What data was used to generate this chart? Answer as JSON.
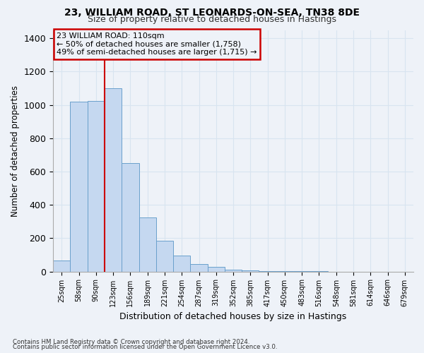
{
  "title1": "23, WILLIAM ROAD, ST LEONARDS-ON-SEA, TN38 8DE",
  "title2": "Size of property relative to detached houses in Hastings",
  "xlabel": "Distribution of detached houses by size in Hastings",
  "ylabel": "Number of detached properties",
  "footnote1": "Contains HM Land Registry data © Crown copyright and database right 2024.",
  "footnote2": "Contains public sector information licensed under the Open Government Licence v3.0.",
  "annotation_line1": "23 WILLIAM ROAD: 110sqm",
  "annotation_line2": "← 50% of detached houses are smaller (1,758)",
  "annotation_line3": "49% of semi-detached houses are larger (1,715) →",
  "bar_labels": [
    "25sqm",
    "58sqm",
    "90sqm",
    "123sqm",
    "156sqm",
    "189sqm",
    "221sqm",
    "254sqm",
    "287sqm",
    "319sqm",
    "352sqm",
    "385sqm",
    "417sqm",
    "450sqm",
    "483sqm",
    "516sqm",
    "548sqm",
    "581sqm",
    "614sqm",
    "646sqm",
    "679sqm"
  ],
  "bar_heights": [
    65,
    1020,
    1025,
    1100,
    650,
    325,
    185,
    95,
    45,
    28,
    12,
    5,
    3,
    2,
    1,
    1,
    0,
    0,
    0,
    0,
    0
  ],
  "bar_color": "#c5d8f0",
  "bar_edgecolor": "#6aa0cc",
  "vline_x_idx": 2.5,
  "vline_color": "#cc0000",
  "ylim": [
    0,
    1450
  ],
  "yticks": [
    0,
    200,
    400,
    600,
    800,
    1000,
    1200,
    1400
  ],
  "annotation_box_color": "#cc0000",
  "background_color": "#eef2f8",
  "grid_color": "#d8e4f0"
}
